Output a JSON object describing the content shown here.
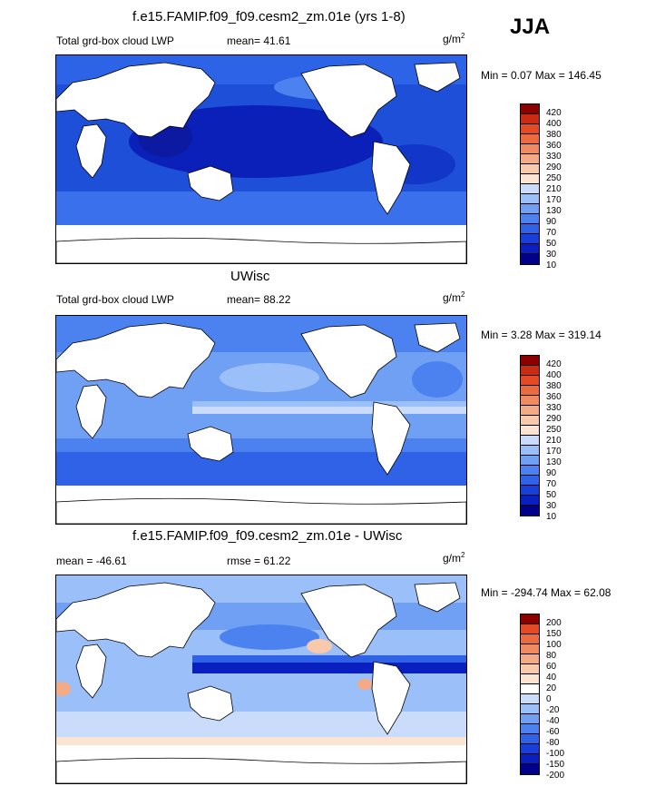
{
  "season": "JJA",
  "units_base": "g/m",
  "units_exp": "2",
  "palette_abs": [
    "#00008a",
    "#0a1fc0",
    "#1840d8",
    "#2f62e6",
    "#4c82f0",
    "#6fa0f4",
    "#9bbff8",
    "#c9dcfc",
    "#fde4d2",
    "#f8c9aa",
    "#f4aa84",
    "#f08a60",
    "#ec6a40",
    "#e44a24",
    "#cc2a12",
    "#8e0000"
  ],
  "palette_diff": [
    "#00008a",
    "#0a1fc0",
    "#1840d8",
    "#2f62e6",
    "#4c82f0",
    "#6fa0f4",
    "#9bbff8",
    "#c9dcfc",
    "#ffffff",
    "#fde4d2",
    "#f8c9aa",
    "#f4aa84",
    "#f08a60",
    "#ec6a40",
    "#e44a24",
    "#8e0000"
  ],
  "panels": [
    {
      "title": "f.e15.FAMIP.f09_f09.cesm2_zm.01e (yrs 1-8)",
      "subtitle": "Total grd-box cloud LWP",
      "stat": "mean=  41.61",
      "minmax": "Min =   0.07 Max = 146.45",
      "colorbar_ticks": [
        "420",
        "400",
        "380",
        "360",
        "330",
        "290",
        "250",
        "210",
        "170",
        "130",
        "90",
        "70",
        "50",
        "30",
        "10"
      ]
    },
    {
      "title": "UWisc",
      "subtitle": "Total grd-box cloud LWP",
      "stat": "mean=  88.22",
      "minmax": "Min =   3.28 Max = 319.14",
      "colorbar_ticks": [
        "420",
        "400",
        "380",
        "360",
        "330",
        "290",
        "250",
        "210",
        "170",
        "130",
        "90",
        "70",
        "50",
        "30",
        "10"
      ]
    },
    {
      "title": "f.e15.FAMIP.f09_f09.cesm2_zm.01e - UWisc",
      "subtitle": "mean = -46.61",
      "stat": "rmse =  61.22",
      "minmax": "Min = -294.74 Max =  62.08",
      "colorbar_ticks": [
        "200",
        "150",
        "100",
        "80",
        "60",
        "40",
        "20",
        "0",
        "-20",
        "-40",
        "-60",
        "-80",
        "-100",
        "-150",
        "-200"
      ]
    }
  ]
}
